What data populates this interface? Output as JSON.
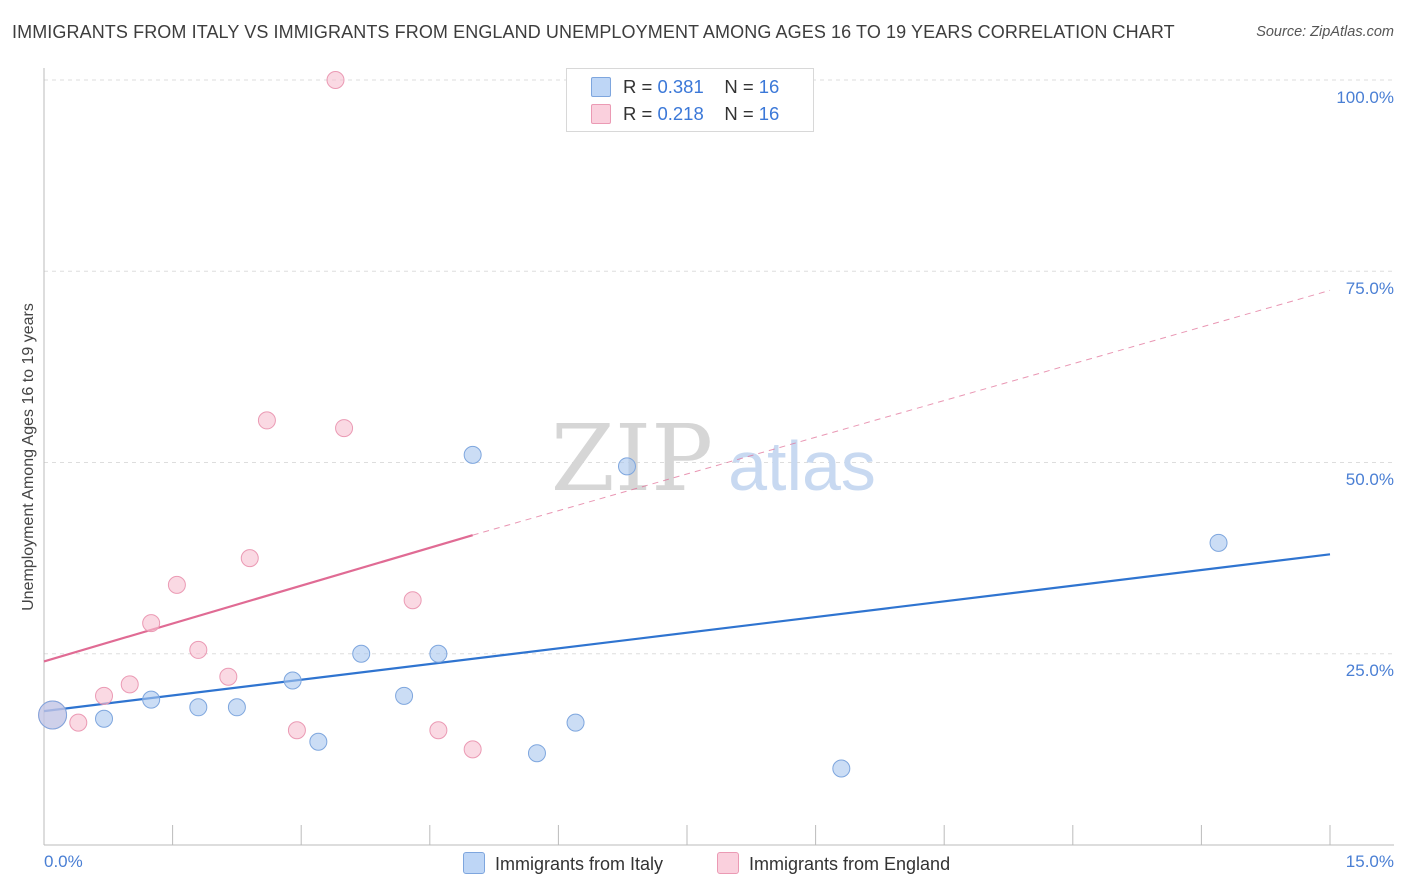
{
  "chart_data": {
    "type": "scatter",
    "title": "IMMIGRANTS FROM ITALY VS IMMIGRANTS FROM ENGLAND UNEMPLOYMENT AMONG AGES 16 TO 19 YEARS CORRELATION CHART",
    "source": "Source: ZipAtlas.com",
    "ylabel": "Unemployment Among Ages 16 to 19 years",
    "xlabel": "",
    "xlim": [
      0,
      15
    ],
    "ylim": [
      0,
      100
    ],
    "x_tick_labels": [
      "0.0%",
      "15.0%"
    ],
    "y_ticks": [
      {
        "value": 25,
        "label": "25.0%"
      },
      {
        "value": 50,
        "label": "50.0%"
      },
      {
        "value": 75,
        "label": "75.0%"
      },
      {
        "value": 100,
        "label": "100.0%"
      }
    ],
    "grid": true,
    "watermark": {
      "zip": "ZIP",
      "atlas": "atlas"
    },
    "legend": [
      {
        "r_label": "R =",
        "r_value": "0.381",
        "n_label": "N =",
        "n_value": "16"
      },
      {
        "r_label": "R =",
        "r_value": "0.218",
        "n_label": "N =",
        "n_value": "16"
      }
    ],
    "series": [
      {
        "name": "Immigrants from Italy",
        "color": "#a9c7ef",
        "stroke": "#7ea6de",
        "line_color": "#2f74d0",
        "trend": {
          "x0": 0.0,
          "y0": 17.5,
          "x1": 15.0,
          "y1": 38.0
        },
        "points": [
          {
            "x": 0.1,
            "y": 17.0,
            "big": true
          },
          {
            "x": 0.7,
            "y": 16.5
          },
          {
            "x": 1.25,
            "y": 19.0
          },
          {
            "x": 1.8,
            "y": 18.0
          },
          {
            "x": 2.25,
            "y": 18.0
          },
          {
            "x": 2.9,
            "y": 21.5
          },
          {
            "x": 3.2,
            "y": 13.5
          },
          {
            "x": 3.7,
            "y": 25.0
          },
          {
            "x": 4.2,
            "y": 19.5
          },
          {
            "x": 4.6,
            "y": 25.0
          },
          {
            "x": 5.0,
            "y": 51.0
          },
          {
            "x": 5.75,
            "y": 12.0
          },
          {
            "x": 6.2,
            "y": 16.0
          },
          {
            "x": 6.8,
            "y": 49.5
          },
          {
            "x": 9.3,
            "y": 10.0
          },
          {
            "x": 13.7,
            "y": 39.5
          }
        ]
      },
      {
        "name": "Immigrants from England",
        "color": "#f7bfd0",
        "stroke": "#eb9ab4",
        "line_color": "#e06b94",
        "trend": {
          "x0": 0.0,
          "y0": 24.0,
          "x1": 5.0,
          "y1": 40.5
        },
        "trend_dashed": {
          "x0": 5.0,
          "y0": 40.5,
          "x1": 15.0,
          "y1": 72.5
        },
        "points": [
          {
            "x": 0.1,
            "y": 17.0,
            "big": true
          },
          {
            "x": 0.4,
            "y": 16.0
          },
          {
            "x": 0.7,
            "y": 19.5
          },
          {
            "x": 1.0,
            "y": 21.0
          },
          {
            "x": 1.25,
            "y": 29.0
          },
          {
            "x": 1.55,
            "y": 34.0
          },
          {
            "x": 1.8,
            "y": 25.5
          },
          {
            "x": 2.15,
            "y": 22.0
          },
          {
            "x": 2.4,
            "y": 37.5
          },
          {
            "x": 2.6,
            "y": 55.5
          },
          {
            "x": 2.95,
            "y": 15.0
          },
          {
            "x": 3.4,
            "y": 100.0
          },
          {
            "x": 3.5,
            "y": 54.5
          },
          {
            "x": 4.3,
            "y": 32.0
          },
          {
            "x": 4.6,
            "y": 15.0
          },
          {
            "x": 5.0,
            "y": 12.5
          }
        ]
      }
    ]
  }
}
